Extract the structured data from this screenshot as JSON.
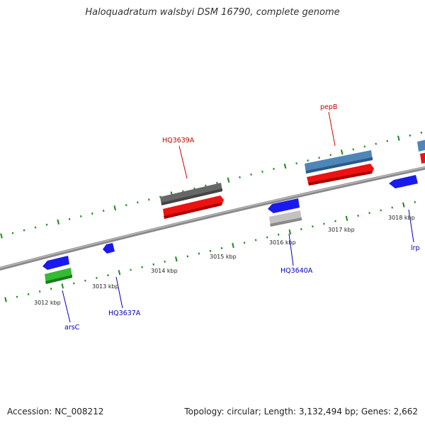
{
  "title": "Haloquadratum walsbyi DSM 16790, complete genome",
  "footer": {
    "accession": "Accession: NC_008212",
    "summary": "Topology: circular; Length: 3,132,494 bp; Genes: 2,662"
  },
  "colors": {
    "backbone": "#8a8a8a",
    "tick": "#1a8a1a",
    "forward_label": "#cc0000",
    "reverse_label": "#0000bb",
    "forward_gene": "#4f86b8",
    "reverse_gene": "#1a1aee",
    "cds": "#ee1111",
    "pseudo": "#676767",
    "rna": "#c2c2c2",
    "green_cds": "#33bb33"
  },
  "scale": {
    "kbp_labels": [
      {
        "label": "3012 kbp",
        "kbp": 3012
      },
      {
        "label": "3013 kbp",
        "kbp": 3013
      },
      {
        "label": "3014 kbp",
        "kbp": 3014
      },
      {
        "label": "3015 kbp",
        "kbp": 3015
      },
      {
        "label": "3016 kbp",
        "kbp": 3016
      },
      {
        "label": "3017 kbp",
        "kbp": 3017
      },
      {
        "label": "3018 kbp",
        "kbp": 3018
      }
    ]
  },
  "features": [
    {
      "name": "HQ3639A",
      "strand": "forward",
      "start_kbp": 3014.1,
      "end_kbp": 3014.9
    },
    {
      "name": "pepB",
      "strand": "forward",
      "start_kbp": 3016.7,
      "end_kbp": 3017.8
    },
    {
      "name": "arsC",
      "strand": "reverse",
      "start_kbp": 3011.7,
      "end_kbp": 3012.1
    },
    {
      "name": "HQ3637A",
      "strand": "reverse",
      "start_kbp": 3012.8,
      "end_kbp": 3012.95
    },
    {
      "name": "HQ3640A",
      "strand": "reverse",
      "start_kbp": 3015.8,
      "end_kbp": 3016.3
    },
    {
      "name": "lrp",
      "strand": "reverse",
      "start_kbp": 3018.1,
      "end_kbp": 3018.6
    }
  ]
}
